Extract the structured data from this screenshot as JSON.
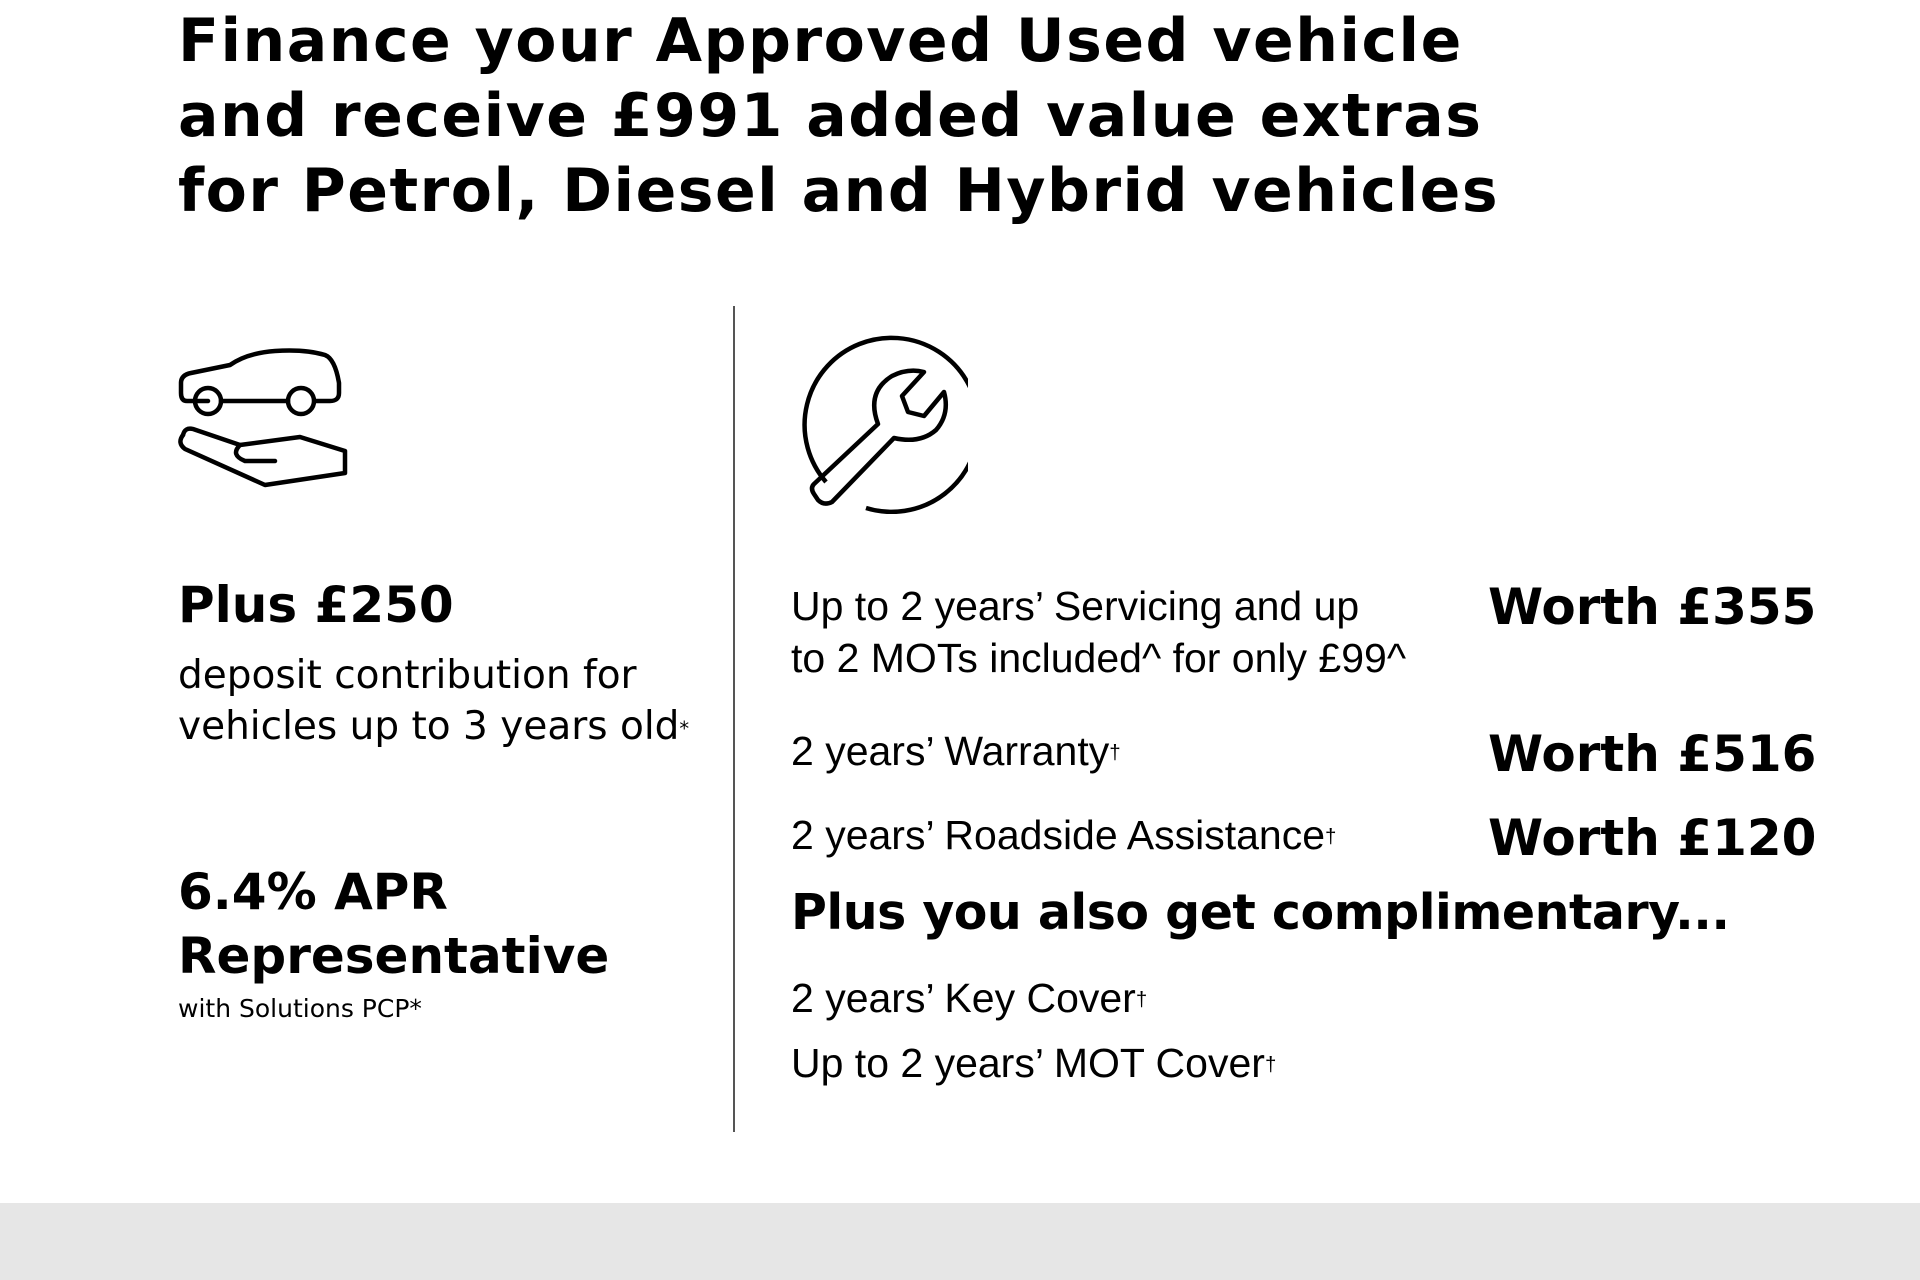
{
  "headline": {
    "lines": [
      "Finance your Approved Used vehicle",
      "and receive £991 added value extras",
      "for Petrol, Diesel and Hybrid vehicles"
    ]
  },
  "left": {
    "icon": "car-on-hand-icon",
    "deposit_title": "Plus £250",
    "deposit_line1": "deposit contribution for",
    "deposit_line2": "vehicles up to 3 years old",
    "deposit_mark": "*",
    "apr_line1": "6.4% APR",
    "apr_line2": "Representative",
    "apr_sub": "with Solutions PCP*"
  },
  "right": {
    "icon": "wrench-circle-icon",
    "items": [
      {
        "line1": "Up to 2 years’ Servicing and up",
        "line2": "to 2 MOTs included^ for only £99^",
        "worth": "Worth £355"
      },
      {
        "line1": "2 years’ Warranty",
        "mark": "†",
        "worth": "Worth £516"
      },
      {
        "line1": "2 years’ Roadside Assistance",
        "mark": "†",
        "worth": "Worth £120"
      }
    ],
    "complimentary_heading": "Plus you also get complimentary...",
    "complimentary": [
      {
        "label": "2 years’ Key Cover",
        "mark": "†"
      },
      {
        "label": "Up to 2 years’ MOT Cover",
        "mark": "†"
      }
    ]
  },
  "colors": {
    "text": "#000000",
    "divider": "#555555",
    "footer_band": "#e6e6e6"
  }
}
